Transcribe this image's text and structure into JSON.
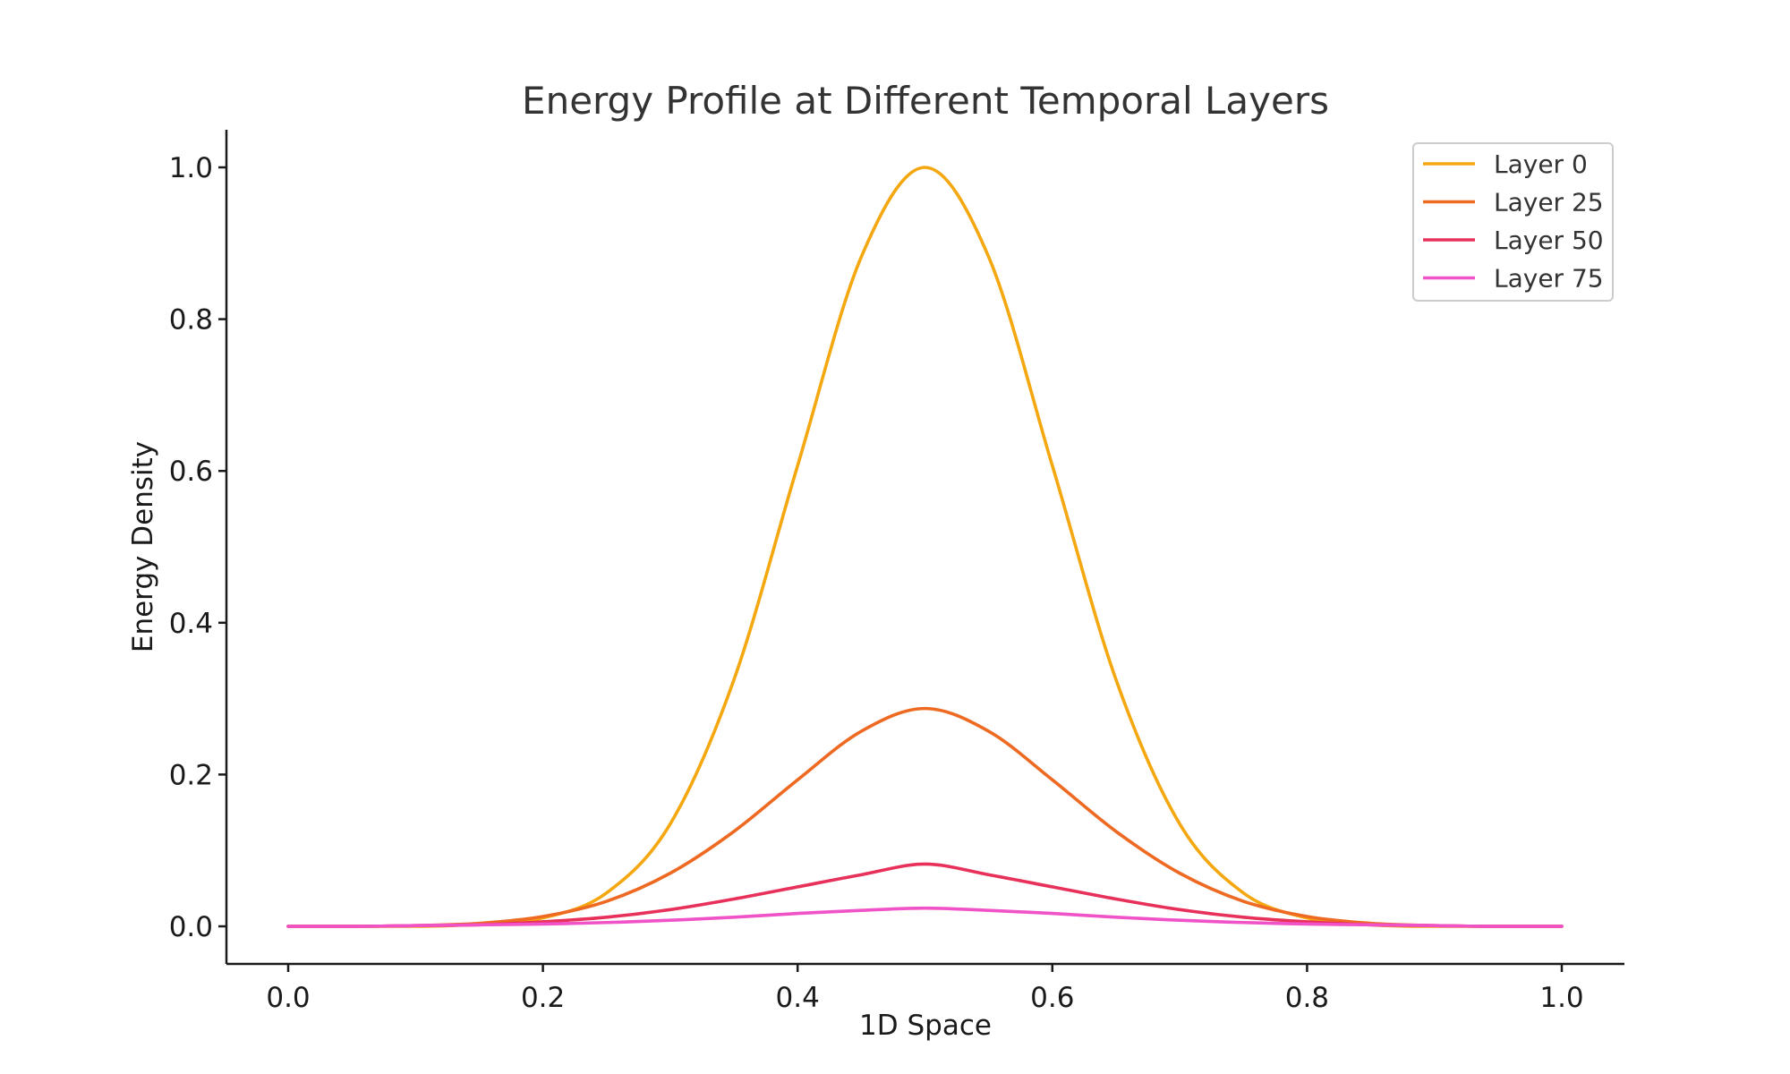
{
  "chart_data": {
    "type": "line",
    "title": "Energy Profile at Different Temporal Layers",
    "xlabel": "1D Space",
    "ylabel": "Energy Density",
    "xlim": [
      -0.05,
      1.05
    ],
    "ylim": [
      -0.05,
      1.05
    ],
    "xticks": [
      0.0,
      0.2,
      0.4,
      0.6,
      0.8,
      1.0
    ],
    "xtick_labels": [
      "0.0",
      "0.2",
      "0.4",
      "0.6",
      "0.8",
      "1.0"
    ],
    "yticks": [
      0.0,
      0.2,
      0.4,
      0.6,
      0.8,
      1.0
    ],
    "ytick_labels": [
      "0.0",
      "0.2",
      "0.4",
      "0.6",
      "0.8",
      "1.0"
    ],
    "grid": false,
    "legend_position": "top-right",
    "x": [
      0.0,
      0.05,
      0.1,
      0.15,
      0.2,
      0.25,
      0.3,
      0.35,
      0.4,
      0.45,
      0.5,
      0.55,
      0.6,
      0.65,
      0.7,
      0.75,
      0.8,
      0.85,
      0.9,
      0.95,
      1.0
    ],
    "series": [
      {
        "name": "Layer 0",
        "color": "#F5A70F",
        "values": [
          0.0,
          0.0,
          0.0,
          0.003,
          0.011,
          0.044,
          0.135,
          0.325,
          0.607,
          0.882,
          1.0,
          0.882,
          0.607,
          0.325,
          0.135,
          0.044,
          0.011,
          0.002,
          0.0,
          0.0,
          0.0
        ]
      },
      {
        "name": "Layer 25",
        "color": "#EE6A22",
        "values": [
          0.0,
          0.0,
          0.001,
          0.004,
          0.013,
          0.033,
          0.07,
          0.125,
          0.193,
          0.257,
          0.287,
          0.257,
          0.193,
          0.125,
          0.07,
          0.033,
          0.013,
          0.004,
          0.001,
          0.0,
          0.0
        ]
      },
      {
        "name": "Layer 50",
        "color": "#E8315A",
        "values": [
          0.0,
          0.0,
          0.001,
          0.002,
          0.006,
          0.012,
          0.022,
          0.036,
          0.052,
          0.068,
          0.082,
          0.068,
          0.052,
          0.036,
          0.022,
          0.012,
          0.006,
          0.002,
          0.001,
          0.0,
          0.0
        ]
      },
      {
        "name": "Layer 75",
        "color": "#F052C8",
        "values": [
          0.0,
          0.0,
          0.001,
          0.002,
          0.003,
          0.005,
          0.008,
          0.012,
          0.017,
          0.021,
          0.024,
          0.021,
          0.017,
          0.012,
          0.008,
          0.005,
          0.003,
          0.002,
          0.001,
          0.0,
          0.0
        ]
      }
    ]
  }
}
